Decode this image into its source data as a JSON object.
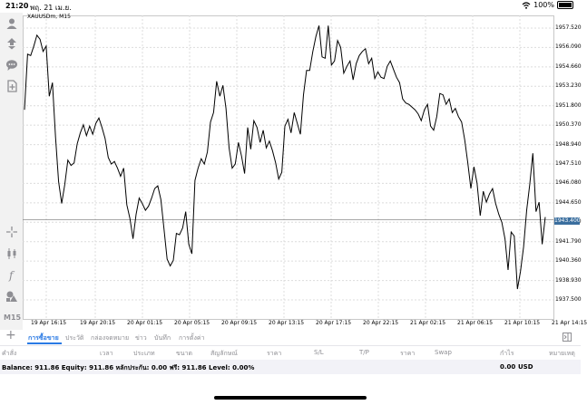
{
  "status_bar": {
    "time": "21:20",
    "date": "พฤ. 21 เม.ย.",
    "battery": "100%"
  },
  "chart": {
    "symbol": "XAUUSDm, M15",
    "timeframe": "M15",
    "current_price": "1943.400",
    "line_color": "#000000",
    "price_label_color": "#3a6e9e"
  },
  "chart_data": {
    "type": "line",
    "title": "XAUUSDm, M15",
    "xlabel": "",
    "ylabel": "",
    "y_ticks": [
      "1957.520",
      "1956.090",
      "1954.660",
      "1953.230",
      "1951.800",
      "1950.370",
      "1948.940",
      "1947.510",
      "1946.080",
      "1944.650",
      "1943.220",
      "1941.790",
      "1940.360",
      "1938.930",
      "1937.500"
    ],
    "x_ticks": [
      "19 Apr 16:15",
      "19 Apr 20:15",
      "20 Apr 01:15",
      "20 Apr 05:15",
      "20 Apr 09:15",
      "20 Apr 13:15",
      "20 Apr 17:15",
      "20 Apr 22:15",
      "21 Apr 02:15",
      "21 Apr 06:15",
      "21 Apr 10:15",
      "21 Apr 14:15"
    ],
    "ylim": [
      1936.6,
      1958.0
    ],
    "current_price": 1943.4,
    "grid": true,
    "series": [
      {
        "values": [
          1951.5,
          1955.6,
          1955.5,
          1956.2,
          1957.0,
          1956.7,
          1955.8,
          1956.2,
          1952.5,
          1953.5,
          1949.5,
          1946.2,
          1944.6,
          1946.0,
          1947.8,
          1947.4,
          1947.6,
          1949.0,
          1949.8,
          1950.4,
          1949.6,
          1950.3,
          1949.7,
          1950.5,
          1950.9,
          1950.2,
          1949.4,
          1948.0,
          1947.5,
          1947.7,
          1947.2,
          1946.6,
          1947.2,
          1944.5,
          1943.5,
          1942.0,
          1943.8,
          1945.0,
          1944.6,
          1944.1,
          1944.4,
          1945.0,
          1945.7,
          1945.9,
          1944.9,
          1942.7,
          1940.5,
          1940.0,
          1940.4,
          1942.4,
          1942.3,
          1942.8,
          1944.0,
          1941.6,
          1940.9,
          1946.3,
          1947.2,
          1947.9,
          1947.5,
          1948.4,
          1950.6,
          1951.3,
          1953.6,
          1952.5,
          1953.3,
          1951.6,
          1948.7,
          1947.2,
          1947.5,
          1949.1,
          1948.1,
          1946.8,
          1950.2,
          1948.6,
          1950.7,
          1950.2,
          1949.1,
          1950.0,
          1948.7,
          1949.2,
          1948.5,
          1947.6,
          1946.4,
          1946.9,
          1950.3,
          1950.8,
          1949.8,
          1951.3,
          1950.5,
          1949.7,
          1952.6,
          1954.4,
          1954.4,
          1955.8,
          1956.9,
          1957.7,
          1955.4,
          1955.3,
          1957.7,
          1954.8,
          1955.1,
          1956.6,
          1956.1,
          1954.2,
          1954.7,
          1955.1,
          1953.7,
          1954.9,
          1955.5,
          1955.8,
          1956.0,
          1954.9,
          1955.3,
          1953.8,
          1954.3,
          1953.9,
          1953.8,
          1954.7,
          1955.1,
          1954.5,
          1953.9,
          1953.5,
          1952.3,
          1952.0,
          1951.9,
          1951.7,
          1951.5,
          1951.2,
          1950.7,
          1951.5,
          1951.9,
          1950.3,
          1950.0,
          1951.0,
          1952.7,
          1952.6,
          1951.9,
          1952.3,
          1951.3,
          1951.6,
          1951.0,
          1950.6,
          1949.3,
          1947.6,
          1945.7,
          1947.3,
          1946.1,
          1943.7,
          1945.5,
          1944.7,
          1945.3,
          1945.7,
          1944.6,
          1943.8,
          1943.2,
          1942.0,
          1939.7,
          1942.5,
          1942.2,
          1938.3,
          1939.6,
          1941.4,
          1944.1,
          1946.0,
          1948.3,
          1944.0,
          1944.7,
          1941.6,
          1943.6
        ]
      }
    ]
  },
  "tabs": {
    "items": [
      {
        "label": "การซื้อขาย"
      },
      {
        "label": "ประวัติ"
      },
      {
        "label": "กล่องจดหมาย"
      },
      {
        "label": "ข่าว"
      },
      {
        "label": "บันทึก"
      },
      {
        "label": "การตั้งค่า"
      }
    ]
  },
  "columns": {
    "items": [
      {
        "label": "คำสั่ง"
      },
      {
        "label": "เวลา"
      },
      {
        "label": "ประเภท"
      },
      {
        "label": "ขนาด"
      },
      {
        "label": "สัญลักษณ์"
      },
      {
        "label": "ราคา"
      },
      {
        "label": "S/L"
      },
      {
        "label": "T/P"
      },
      {
        "label": "ราคา"
      },
      {
        "label": "Swap"
      },
      {
        "label": "กำไร"
      },
      {
        "label": "หมายเหตุ"
      }
    ]
  },
  "balance": {
    "text": "Balance: 911.86 Equity: 911.86 หลักประกัน: 0.00 ฟรี: 911.86 Level: 0.00%",
    "profit": "0.00",
    "currency": "USD"
  }
}
